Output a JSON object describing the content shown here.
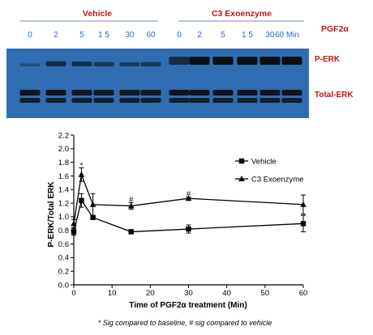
{
  "blot": {
    "group_vehicle": "Vehicle",
    "group_c3": "C3 Exoenzyme",
    "treatment_label": "PGF2α",
    "lane_labels": [
      "0",
      "2",
      "5",
      "1 5",
      "30",
      "60",
      "0",
      "2",
      "5",
      "1 5",
      "30",
      "60 Min"
    ],
    "perk_label": "P-ERK",
    "total_label": "Total-ERK",
    "perk_intensity": [
      0.1,
      0.55,
      0.5,
      0.4,
      0.35,
      0.4,
      0.55,
      0.95,
      0.95,
      0.95,
      0.95,
      0.95
    ],
    "total_intensity": [
      0.85,
      0.85,
      0.8,
      0.8,
      0.8,
      0.8,
      0.85,
      0.85,
      0.85,
      0.85,
      0.85,
      0.85
    ]
  },
  "colors": {
    "group_label": "#c0171b",
    "lane_label": "#2f6eb5",
    "blot_background": "#2f6db0",
    "band": "#0b0e14"
  },
  "chart_data": {
    "type": "line",
    "xlabel": "Time of PGF2α treatment (Min)",
    "ylabel": "P-ERK/Total ERK",
    "xlim": [
      0,
      60
    ],
    "ylim": [
      0,
      2.2
    ],
    "xticks": [
      0,
      10,
      20,
      30,
      40,
      50,
      60
    ],
    "yticks": [
      0.0,
      0.2,
      0.4,
      0.6,
      0.8,
      1.0,
      1.2,
      1.4,
      1.6,
      1.8,
      2.0,
      2.2
    ],
    "grid": false,
    "legend_position": "top-right",
    "series": [
      {
        "name": "Vehicle",
        "marker": "square",
        "points": [
          {
            "x": 0,
            "y": 0.78,
            "err": 0.05
          },
          {
            "x": 2,
            "y": 1.24,
            "err": 0.1
          },
          {
            "x": 5,
            "y": 0.99,
            "err": 0.02
          },
          {
            "x": 15,
            "y": 0.78,
            "err": 0.03
          },
          {
            "x": 30,
            "y": 0.82,
            "err": 0.06
          },
          {
            "x": 60,
            "y": 0.9,
            "err": 0.12
          }
        ]
      },
      {
        "name": "C3 Exoenzyme",
        "marker": "triangle",
        "points": [
          {
            "x": 0,
            "y": 0.9,
            "err": 0.06
          },
          {
            "x": 2,
            "y": 1.62,
            "err": 0.1
          },
          {
            "x": 5,
            "y": 1.18,
            "err": 0.16
          },
          {
            "x": 15,
            "y": 1.16,
            "err": 0.05
          },
          {
            "x": 30,
            "y": 1.27,
            "err": 0.02
          },
          {
            "x": 60,
            "y": 1.18,
            "err": 0.14
          }
        ]
      }
    ],
    "annotations": [
      {
        "text": "*",
        "x": 2,
        "y": 1.72
      },
      {
        "text": "#",
        "x": 15,
        "y": 1.22
      },
      {
        "text": "#",
        "x": 30,
        "y": 1.3
      }
    ],
    "footnote": "* Sig compared to baseline, # sig compared to vehicle"
  }
}
